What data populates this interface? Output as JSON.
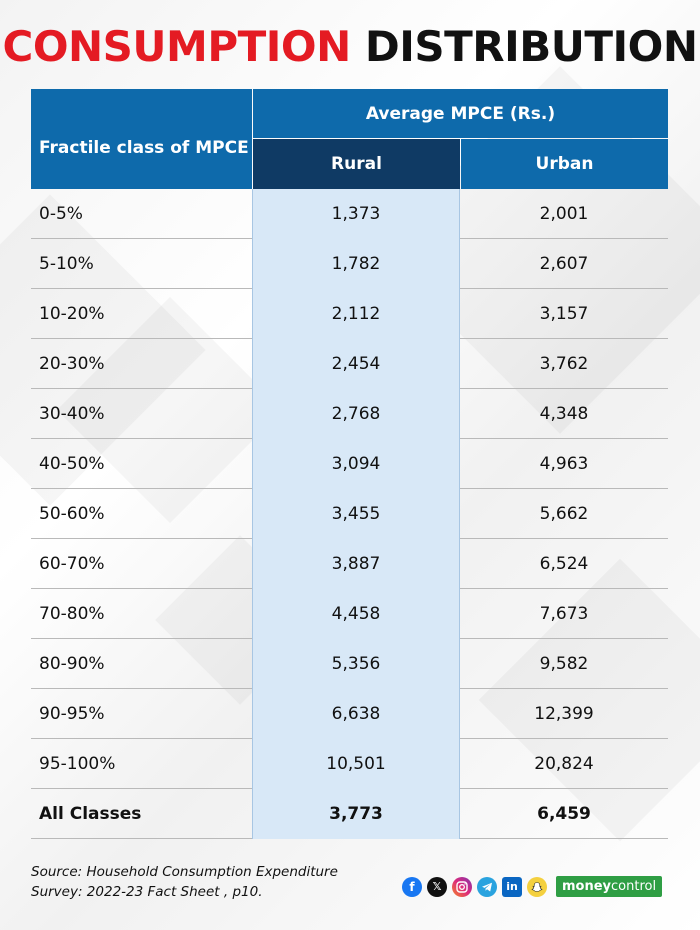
{
  "title": {
    "word1": "CONSUMPTION",
    "word2": "DISTRIBUTION"
  },
  "chart_data": {
    "type": "table",
    "title": "CONSUMPTION DISTRIBUTION",
    "columns": {
      "fractile": "Fractile class of MPCE",
      "group": "Average MPCE (Rs.)",
      "rural": "Rural",
      "urban": "Urban"
    },
    "rows": [
      {
        "fractile": "0-5%",
        "rural": "1,373",
        "urban": "2,001"
      },
      {
        "fractile": "5-10%",
        "rural": "1,782",
        "urban": "2,607"
      },
      {
        "fractile": "10-20%",
        "rural": "2,112",
        "urban": "3,157"
      },
      {
        "fractile": "20-30%",
        "rural": "2,454",
        "urban": "3,762"
      },
      {
        "fractile": "30-40%",
        "rural": "2,768",
        "urban": "4,348"
      },
      {
        "fractile": "40-50%",
        "rural": "3,094",
        "urban": "4,963"
      },
      {
        "fractile": "50-60%",
        "rural": "3,455",
        "urban": "5,662"
      },
      {
        "fractile": "60-70%",
        "rural": "3,887",
        "urban": "6,524"
      },
      {
        "fractile": "70-80%",
        "rural": "4,458",
        "urban": "7,673"
      },
      {
        "fractile": "80-90%",
        "rural": "5,356",
        "urban": "9,582"
      },
      {
        "fractile": "90-95%",
        "rural": "6,638",
        "urban": "12,399"
      },
      {
        "fractile": "95-100%",
        "rural": "10,501",
        "urban": "20,824"
      }
    ],
    "total": {
      "fractile": "All Classes",
      "rural": "3,773",
      "urban": "6,459"
    }
  },
  "footer": {
    "source_line1": "Source: Household Consumption Expenditure",
    "source_line2": "Survey: 2022-23 Fact Sheet , p10."
  },
  "social": {
    "icons": [
      "facebook-icon",
      "x-icon",
      "instagram-icon",
      "telegram-icon",
      "linkedin-icon",
      "snapchat-icon"
    ],
    "brand_part1": "money",
    "brand_part2": "control"
  },
  "colors": {
    "title_red": "#e41b23",
    "header_blue": "#0e6aab",
    "header_navy": "#0f3a64",
    "rural_fill": "#d8e8f7",
    "brand_green": "#2f9e44"
  }
}
